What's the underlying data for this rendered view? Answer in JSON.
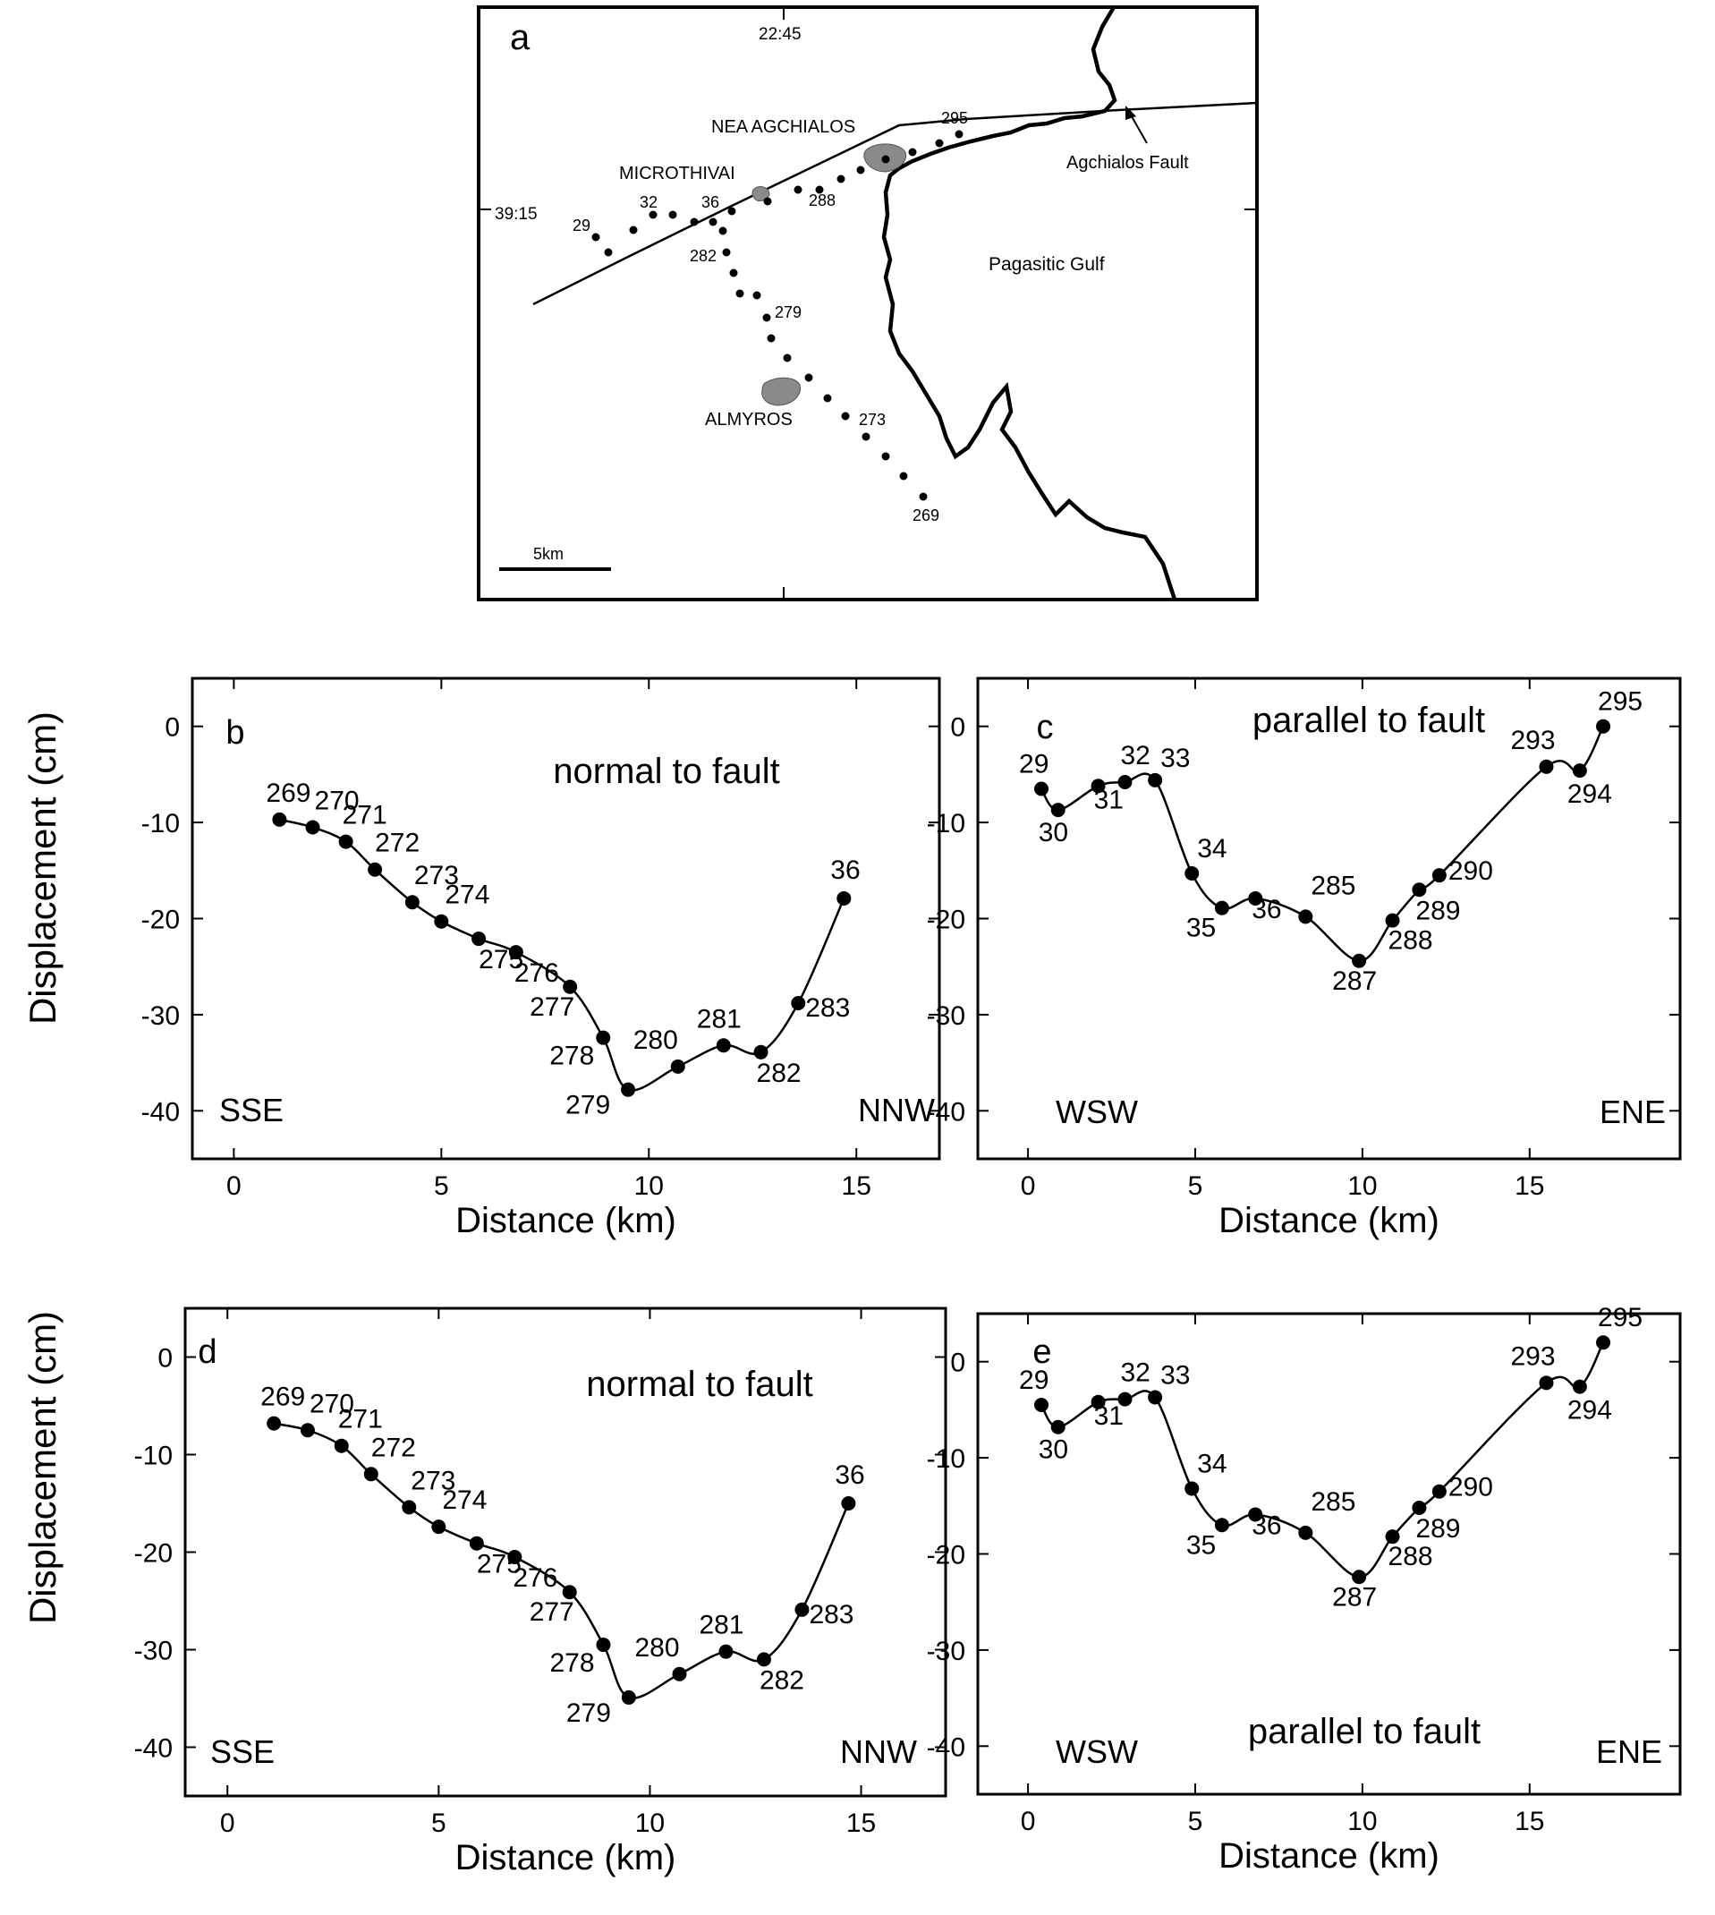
{
  "chart_data": [
    {
      "panel": "a",
      "type": "map",
      "title": "a",
      "labels": {
        "lon": "22:45",
        "lat": "39:15",
        "town1": "NEA AGCHIALOS",
        "town2": "MICROTHIVAI",
        "town3": "ALMYROS",
        "gulf": "Pagasitic Gulf",
        "fault": "Agchialos Fault",
        "scale": "5km"
      },
      "station_labels": [
        "29",
        "32",
        "36",
        "282",
        "279",
        "273",
        "269",
        "288",
        "295"
      ]
    },
    {
      "panel": "b",
      "type": "line",
      "title": "normal to fault",
      "xlabel": "Distance (km)",
      "ylabel": "Displacement (cm)",
      "xlim": [
        -1,
        17
      ],
      "ylim": [
        -45,
        5
      ],
      "xticks": [
        0,
        5,
        10,
        15
      ],
      "yticks": [
        0,
        -10,
        -20,
        -30,
        -40
      ],
      "left_label": "SSE",
      "right_label": "NNW",
      "points": [
        {
          "x": 1.1,
          "y": -9.7,
          "label": "269"
        },
        {
          "x": 1.9,
          "y": -10.5,
          "label": "270"
        },
        {
          "x": 2.7,
          "y": -12.0,
          "label": "271"
        },
        {
          "x": 3.4,
          "y": -14.9,
          "label": "272"
        },
        {
          "x": 4.3,
          "y": -18.3,
          "label": "273"
        },
        {
          "x": 5.0,
          "y": -20.3,
          "label": "274"
        },
        {
          "x": 5.9,
          "y": -22.1,
          "label": "275"
        },
        {
          "x": 6.8,
          "y": -23.5,
          "label": "276"
        },
        {
          "x": 8.1,
          "y": -27.1,
          "label": "277"
        },
        {
          "x": 8.9,
          "y": -32.4,
          "label": "278"
        },
        {
          "x": 9.5,
          "y": -37.8,
          "label": "279"
        },
        {
          "x": 10.7,
          "y": -35.4,
          "label": "280"
        },
        {
          "x": 11.8,
          "y": -33.2,
          "label": "281"
        },
        {
          "x": 12.7,
          "y": -33.9,
          "label": "282"
        },
        {
          "x": 13.6,
          "y": -28.8,
          "label": "283"
        },
        {
          "x": 14.7,
          "y": -17.9,
          "label": "36"
        }
      ]
    },
    {
      "panel": "c",
      "type": "line",
      "title": "parallel to fault",
      "xlabel": "Distance (km)",
      "ylabel": "",
      "xlim": [
        -1.5,
        19.5
      ],
      "ylim": [
        -45,
        5
      ],
      "xticks": [
        0,
        5,
        10,
        15
      ],
      "yticks": [
        0,
        -10,
        -20,
        -30,
        -40
      ],
      "left_label": "WSW",
      "right_label": "ENE",
      "points": [
        {
          "x": 0.4,
          "y": -6.5,
          "label": "29"
        },
        {
          "x": 0.9,
          "y": -8.7,
          "label": "30"
        },
        {
          "x": 2.1,
          "y": -6.2,
          "label": "31"
        },
        {
          "x": 2.9,
          "y": -5.8,
          "label": "32"
        },
        {
          "x": 3.8,
          "y": -5.6,
          "label": "33"
        },
        {
          "x": 4.9,
          "y": -15.3,
          "label": "34"
        },
        {
          "x": 5.8,
          "y": -18.9,
          "label": "35"
        },
        {
          "x": 6.8,
          "y": -17.9,
          "label": "36"
        },
        {
          "x": 8.3,
          "y": -19.8,
          "label": "285"
        },
        {
          "x": 9.9,
          "y": -24.4,
          "label": "287"
        },
        {
          "x": 10.9,
          "y": -20.2,
          "label": "288"
        },
        {
          "x": 11.7,
          "y": -17.0,
          "label": "289"
        },
        {
          "x": 12.3,
          "y": -15.5,
          "label": "290"
        },
        {
          "x": 15.5,
          "y": -4.2,
          "label": "293"
        },
        {
          "x": 16.5,
          "y": -4.6,
          "label": "294"
        },
        {
          "x": 17.2,
          "y": 0.0,
          "label": "295"
        }
      ]
    },
    {
      "panel": "d",
      "type": "line",
      "title": "normal to fault",
      "xlabel": "Distance (km)",
      "ylabel": "Displacement  (cm)",
      "xlim": [
        -1,
        17
      ],
      "ylim": [
        -45,
        5
      ],
      "xticks": [
        0,
        5,
        10,
        15
      ],
      "yticks": [
        0,
        -10,
        -20,
        -30,
        -40
      ],
      "left_label": "SSE",
      "right_label": "NNW",
      "points": [
        {
          "x": 1.1,
          "y": -6.8,
          "label": "269"
        },
        {
          "x": 1.9,
          "y": -7.5,
          "label": "270"
        },
        {
          "x": 2.7,
          "y": -9.1,
          "label": "271"
        },
        {
          "x": 3.4,
          "y": -12.0,
          "label": "272"
        },
        {
          "x": 4.3,
          "y": -15.4,
          "label": "273"
        },
        {
          "x": 5.0,
          "y": -17.4,
          "label": "274"
        },
        {
          "x": 5.9,
          "y": -19.1,
          "label": "275"
        },
        {
          "x": 6.8,
          "y": -20.5,
          "label": "276"
        },
        {
          "x": 8.1,
          "y": -24.1,
          "label": "277"
        },
        {
          "x": 8.9,
          "y": -29.5,
          "label": "278"
        },
        {
          "x": 9.5,
          "y": -34.9,
          "label": "279"
        },
        {
          "x": 10.7,
          "y": -32.5,
          "label": "280"
        },
        {
          "x": 11.8,
          "y": -30.2,
          "label": "281"
        },
        {
          "x": 12.7,
          "y": -31.0,
          "label": "282"
        },
        {
          "x": 13.6,
          "y": -25.9,
          "label": "283"
        },
        {
          "x": 14.7,
          "y": -15.0,
          "label": "36"
        }
      ]
    },
    {
      "panel": "e",
      "type": "line",
      "title": "parallel to fault",
      "xlabel": "Distance (km)",
      "ylabel": "",
      "xlim": [
        -1.5,
        19.5
      ],
      "ylim": [
        -45,
        5
      ],
      "xticks": [
        0,
        5,
        10,
        15
      ],
      "yticks": [
        0,
        -10,
        -20,
        -30,
        -40
      ],
      "left_label": "WSW",
      "right_label": "ENE",
      "points": [
        {
          "x": 0.4,
          "y": -4.5,
          "label": "29"
        },
        {
          "x": 0.9,
          "y": -6.8,
          "label": "30"
        },
        {
          "x": 2.1,
          "y": -4.2,
          "label": "31"
        },
        {
          "x": 2.9,
          "y": -3.9,
          "label": "32"
        },
        {
          "x": 3.8,
          "y": -3.7,
          "label": "33"
        },
        {
          "x": 4.9,
          "y": -13.2,
          "label": "34"
        },
        {
          "x": 5.8,
          "y": -17.0,
          "label": "35"
        },
        {
          "x": 6.8,
          "y": -15.9,
          "label": "36"
        },
        {
          "x": 8.3,
          "y": -17.8,
          "label": "285"
        },
        {
          "x": 9.9,
          "y": -22.4,
          "label": "287"
        },
        {
          "x": 10.9,
          "y": -18.2,
          "label": "288"
        },
        {
          "x": 11.7,
          "y": -15.2,
          "label": "289"
        },
        {
          "x": 12.3,
          "y": -13.5,
          "label": "290"
        },
        {
          "x": 15.5,
          "y": -2.2,
          "label": "293"
        },
        {
          "x": 16.5,
          "y": -2.6,
          "label": "294"
        },
        {
          "x": 17.2,
          "y": 2.0,
          "label": "295"
        }
      ]
    }
  ]
}
